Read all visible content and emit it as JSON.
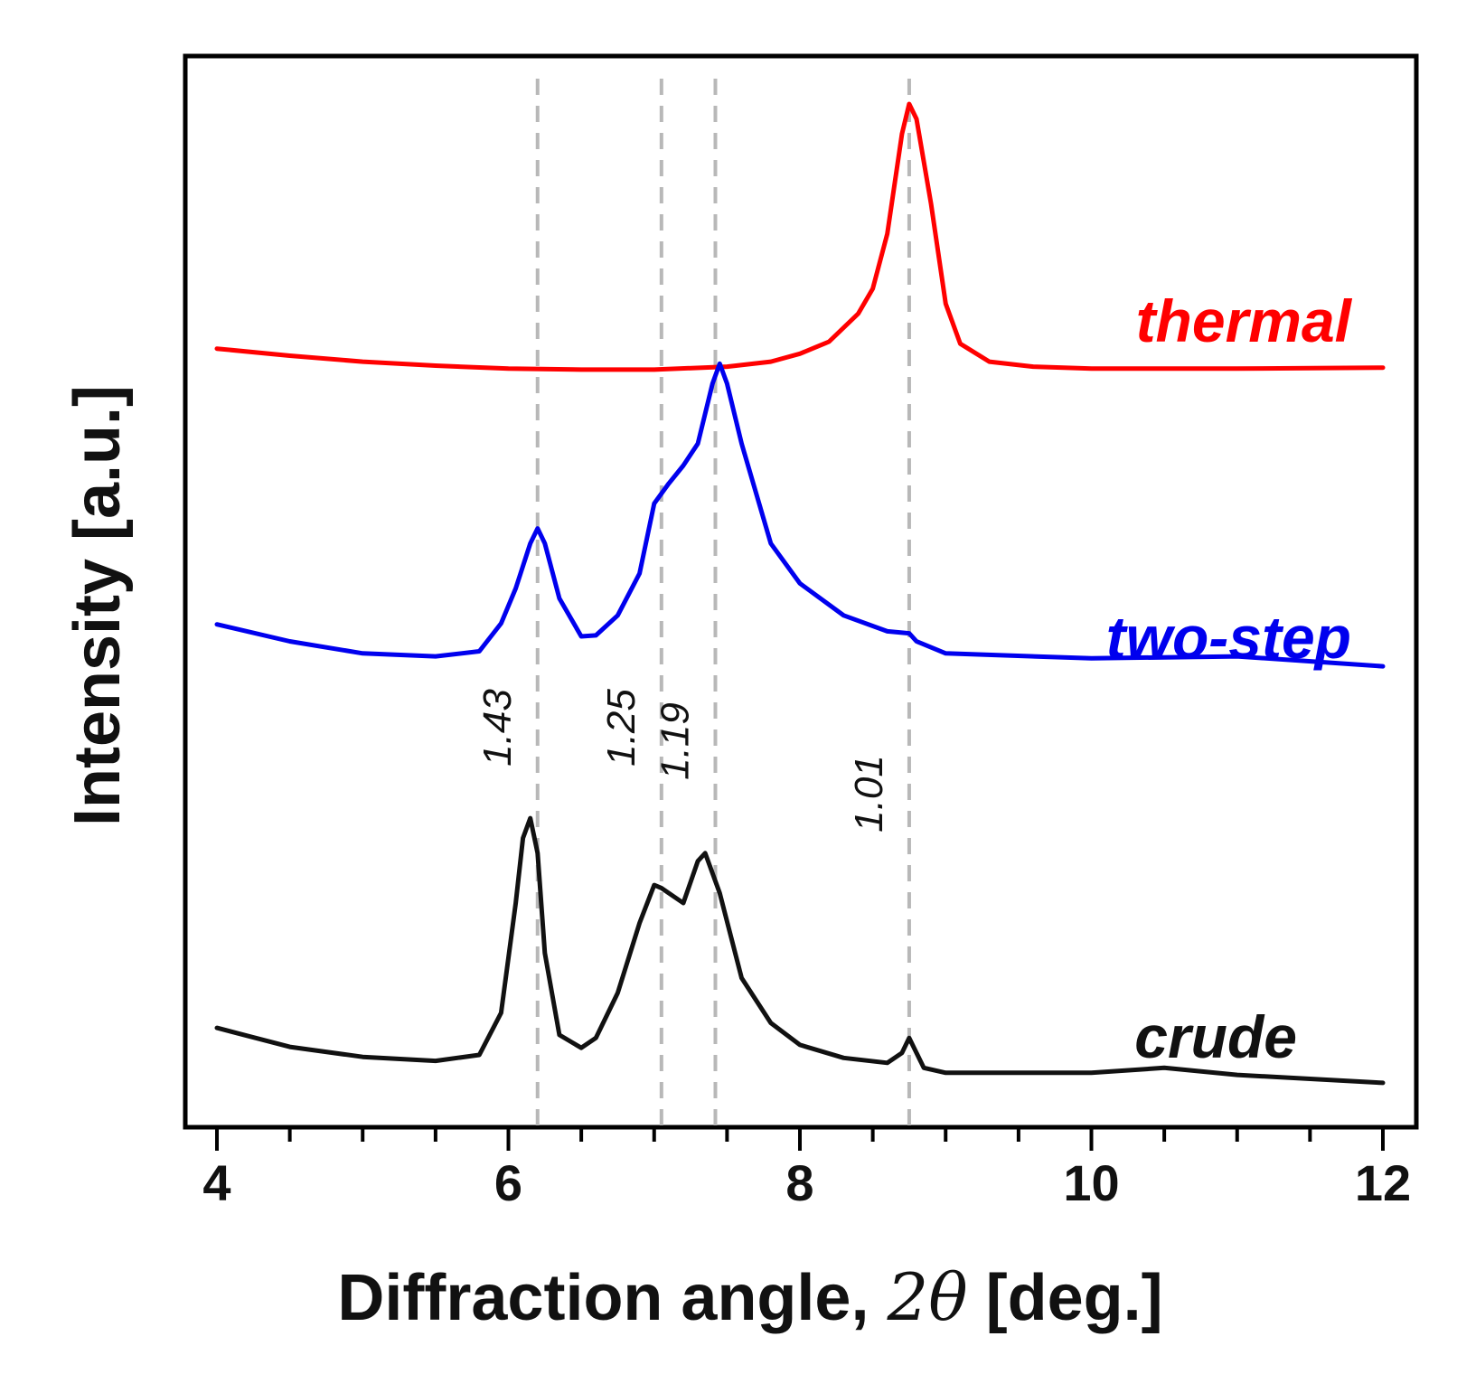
{
  "chart_data": {
    "type": "line",
    "title": "",
    "xlabel": "Diffraction angle, 2θ [deg.]",
    "xlabel_parts": {
      "prefix": "Diffraction angle, ",
      "symbol": "2θ",
      "suffix": " [deg.]"
    },
    "ylabel": "Intensity [a.u.]",
    "xlim": [
      4,
      12
    ],
    "x_ticks": [
      "4",
      "6",
      "8",
      "10",
      "12"
    ],
    "y_ticks": [],
    "grid": false,
    "series": [
      {
        "name": "thermal",
        "color": "#ff0000",
        "x": [
          4.0,
          4.5,
          5.0,
          5.5,
          6.0,
          6.5,
          7.0,
          7.5,
          7.8,
          8.0,
          8.2,
          8.4,
          8.5,
          8.6,
          8.7,
          8.75,
          8.8,
          8.9,
          9.0,
          9.1,
          9.3,
          9.6,
          10.0,
          11.0,
          12.0
        ],
        "values": [
          0.755,
          0.748,
          0.742,
          0.738,
          0.735,
          0.734,
          0.734,
          0.737,
          0.742,
          0.75,
          0.762,
          0.79,
          0.815,
          0.87,
          0.97,
          1.0,
          0.985,
          0.9,
          0.8,
          0.76,
          0.742,
          0.737,
          0.735,
          0.735,
          0.736
        ]
      },
      {
        "name": "two-step",
        "color": "#0000ee",
        "x": [
          4.0,
          4.5,
          5.0,
          5.5,
          5.8,
          5.95,
          6.05,
          6.15,
          6.2,
          6.25,
          6.35,
          6.5,
          6.6,
          6.75,
          6.9,
          7.0,
          7.1,
          7.2,
          7.3,
          7.4,
          7.45,
          7.5,
          7.6,
          7.8,
          8.0,
          8.3,
          8.6,
          8.75,
          8.8,
          9.0,
          10.0,
          11.0,
          12.0
        ],
        "values": [
          0.479,
          0.462,
          0.45,
          0.447,
          0.452,
          0.48,
          0.515,
          0.56,
          0.575,
          0.56,
          0.505,
          0.467,
          0.468,
          0.488,
          0.53,
          0.6,
          0.62,
          0.638,
          0.66,
          0.72,
          0.74,
          0.72,
          0.66,
          0.56,
          0.52,
          0.488,
          0.472,
          0.47,
          0.462,
          0.45,
          0.445,
          0.447,
          0.437
        ]
      },
      {
        "name": "crude",
        "color": "#111111",
        "x": [
          4.0,
          4.5,
          5.0,
          5.5,
          5.8,
          5.95,
          6.05,
          6.1,
          6.15,
          6.2,
          6.25,
          6.35,
          6.5,
          6.6,
          6.75,
          6.9,
          7.0,
          7.05,
          7.2,
          7.3,
          7.35,
          7.45,
          7.6,
          7.8,
          8.0,
          8.3,
          8.6,
          8.7,
          8.75,
          8.85,
          9.0,
          10.0,
          10.5,
          11.0,
          12.0
        ],
        "values": [
          0.075,
          0.056,
          0.046,
          0.042,
          0.048,
          0.09,
          0.2,
          0.265,
          0.285,
          0.25,
          0.15,
          0.068,
          0.055,
          0.065,
          0.11,
          0.18,
          0.218,
          0.215,
          0.2,
          0.242,
          0.25,
          0.21,
          0.125,
          0.08,
          0.058,
          0.045,
          0.04,
          0.05,
          0.065,
          0.035,
          0.03,
          0.03,
          0.035,
          0.028,
          0.02
        ]
      }
    ],
    "reference_lines": [
      {
        "x": 6.2,
        "label": "1.43"
      },
      {
        "x": 7.05,
        "label": "1.25"
      },
      {
        "x": 7.42,
        "label": "1.19"
      },
      {
        "x": 8.75,
        "label": "1.01"
      }
    ]
  }
}
